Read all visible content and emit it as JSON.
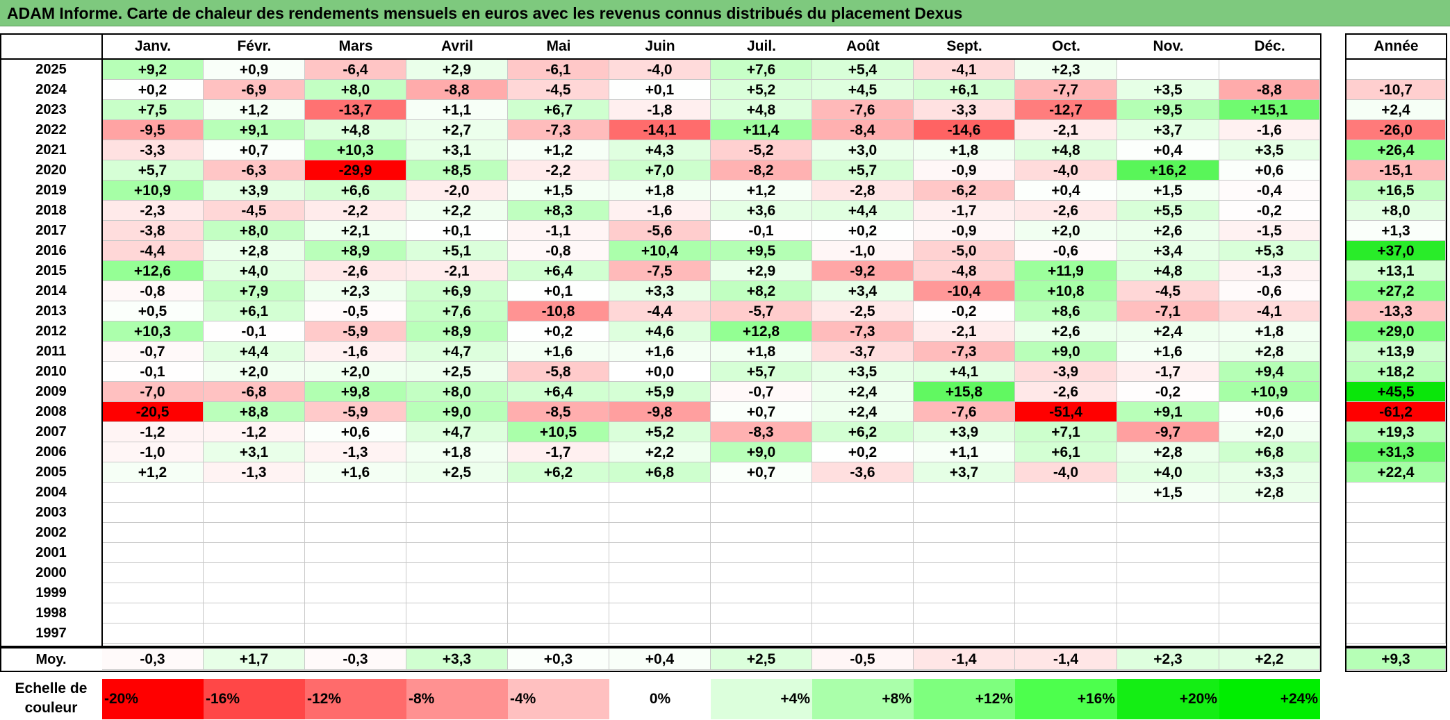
{
  "title": "ADAM Informe. Carte de chaleur des rendements mensuels en euros avec les revenus connus distribués du placement Dexus",
  "months": [
    "Janv.",
    "Févr.",
    "Mars",
    "Avril",
    "Mai",
    "Juin",
    "Juil.",
    "Août",
    "Sept.",
    "Oct.",
    "Nov.",
    "Déc."
  ],
  "year_header": "Année",
  "avg_label": "Moy.",
  "legend_title": "Echelle de couleur",
  "legend": [
    "-20%",
    "-16%",
    "-12%",
    "-8%",
    "-4%",
    "0%",
    "+4%",
    "+8%",
    "+12%",
    "+16%",
    "+20%",
    "+24%"
  ],
  "legend_colors": [
    "#ff0000",
    "#ff4747",
    "#ff6b6b",
    "#ff9191",
    "#ffc0c0",
    "#ffffff",
    "#dcffdc",
    "#aaffaa",
    "#7eff7e",
    "#4dff4d",
    "#14ee14",
    "#00ee00"
  ],
  "chart_data": {
    "type": "heatmap",
    "title": "ADAM Informe. Carte de chaleur des rendements mensuels en euros avec les revenus connus distribués du placement Dexus",
    "columns": [
      "Janv.",
      "Févr.",
      "Mars",
      "Avril",
      "Mai",
      "Juin",
      "Juil.",
      "Août",
      "Sept.",
      "Oct.",
      "Nov.",
      "Déc.",
      "Année"
    ],
    "rows": [
      {
        "year": "2025",
        "values": [
          "+9,2",
          "+0,9",
          "-6,4",
          "+2,9",
          "-6,1",
          "-4,0",
          "+7,6",
          "+5,4",
          "-4,1",
          "+2,3",
          "",
          ""
        ],
        "annual": ""
      },
      {
        "year": "2024",
        "values": [
          "+0,2",
          "-6,9",
          "+8,0",
          "-8,8",
          "-4,5",
          "+0,1",
          "+5,2",
          "+4,5",
          "+6,1",
          "-7,7",
          "+3,5",
          "-8,8"
        ],
        "annual": "-10,7"
      },
      {
        "year": "2023",
        "values": [
          "+7,5",
          "+1,2",
          "-13,7",
          "+1,1",
          "+6,7",
          "-1,8",
          "+4,8",
          "-7,6",
          "-3,3",
          "-12,7",
          "+9,5",
          "+15,1"
        ],
        "annual": "+2,4"
      },
      {
        "year": "2022",
        "values": [
          "-9,5",
          "+9,1",
          "+4,8",
          "+2,7",
          "-7,3",
          "-14,1",
          "+11,4",
          "-8,4",
          "-14,6",
          "-2,1",
          "+3,7",
          "-1,6"
        ],
        "annual": "-26,0"
      },
      {
        "year": "2021",
        "values": [
          "-3,3",
          "+0,7",
          "+10,3",
          "+3,1",
          "+1,2",
          "+4,3",
          "-5,2",
          "+3,0",
          "+1,8",
          "+4,8",
          "+0,4",
          "+3,5"
        ],
        "annual": "+26,4"
      },
      {
        "year": "2020",
        "values": [
          "+5,7",
          "-6,3",
          "-29,9",
          "+8,5",
          "-2,2",
          "+7,0",
          "-8,2",
          "+5,7",
          "-0,9",
          "-4,0",
          "+16,2",
          "+0,6"
        ],
        "annual": "-15,1"
      },
      {
        "year": "2019",
        "values": [
          "+10,9",
          "+3,9",
          "+6,6",
          "-2,0",
          "+1,5",
          "+1,8",
          "+1,2",
          "-2,8",
          "-6,2",
          "+0,4",
          "+1,5",
          "-0,4"
        ],
        "annual": "+16,5"
      },
      {
        "year": "2018",
        "values": [
          "-2,3",
          "-4,5",
          "-2,2",
          "+2,2",
          "+8,3",
          "-1,6",
          "+3,6",
          "+4,4",
          "-1,7",
          "-2,6",
          "+5,5",
          "-0,2"
        ],
        "annual": "+8,0"
      },
      {
        "year": "2017",
        "values": [
          "-3,8",
          "+8,0",
          "+2,1",
          "+0,1",
          "-1,1",
          "-5,6",
          "-0,1",
          "+0,2",
          "-0,9",
          "+2,0",
          "+2,6",
          "-1,5"
        ],
        "annual": "+1,3"
      },
      {
        "year": "2016",
        "values": [
          "-4,4",
          "+2,8",
          "+8,9",
          "+5,1",
          "-0,8",
          "+10,4",
          "+9,5",
          "-1,0",
          "-5,0",
          "-0,6",
          "+3,4",
          "+5,3"
        ],
        "annual": "+37,0"
      },
      {
        "year": "2015",
        "values": [
          "+12,6",
          "+4,0",
          "-2,6",
          "-2,1",
          "+6,4",
          "-7,5",
          "+2,9",
          "-9,2",
          "-4,8",
          "+11,9",
          "+4,8",
          "-1,3"
        ],
        "annual": "+13,1"
      },
      {
        "year": "2014",
        "values": [
          "-0,8",
          "+7,9",
          "+2,3",
          "+6,9",
          "+0,1",
          "+3,3",
          "+8,2",
          "+3,4",
          "-10,4",
          "+10,8",
          "-4,5",
          "-0,6"
        ],
        "annual": "+27,2"
      },
      {
        "year": "2013",
        "values": [
          "+0,5",
          "+6,1",
          "-0,5",
          "+7,6",
          "-10,8",
          "-4,4",
          "-5,7",
          "-2,5",
          "-0,2",
          "+8,6",
          "-7,1",
          "-4,1"
        ],
        "annual": "-13,3"
      },
      {
        "year": "2012",
        "values": [
          "+10,3",
          "-0,1",
          "-5,9",
          "+8,9",
          "+0,2",
          "+4,6",
          "+12,8",
          "-7,3",
          "-2,1",
          "+2,6",
          "+2,4",
          "+1,8"
        ],
        "annual": "+29,0"
      },
      {
        "year": "2011",
        "values": [
          "-0,7",
          "+4,4",
          "-1,6",
          "+4,7",
          "+1,6",
          "+1,6",
          "+1,8",
          "-3,7",
          "-7,3",
          "+9,0",
          "+1,6",
          "+2,8"
        ],
        "annual": "+13,9"
      },
      {
        "year": "2010",
        "values": [
          "-0,1",
          "+2,0",
          "+2,0",
          "+2,5",
          "-5,8",
          "+0,0",
          "+5,7",
          "+3,5",
          "+4,1",
          "-3,9",
          "-1,7",
          "+9,4"
        ],
        "annual": "+18,2"
      },
      {
        "year": "2009",
        "values": [
          "-7,0",
          "-6,8",
          "+9,8",
          "+8,0",
          "+6,4",
          "+5,9",
          "-0,7",
          "+2,4",
          "+15,8",
          "-2,6",
          "-0,2",
          "+10,9"
        ],
        "annual": "+45,5"
      },
      {
        "year": "2008",
        "values": [
          "-20,5",
          "+8,8",
          "-5,9",
          "+9,0",
          "-8,5",
          "-9,8",
          "+0,7",
          "+2,4",
          "-7,6",
          "-51,4",
          "+9,1",
          "+0,6"
        ],
        "annual": "-61,2"
      },
      {
        "year": "2007",
        "values": [
          "-1,2",
          "-1,2",
          "+0,6",
          "+4,7",
          "+10,5",
          "+5,2",
          "-8,3",
          "+6,2",
          "+3,9",
          "+7,1",
          "-9,7",
          "+2,0"
        ],
        "annual": "+19,3"
      },
      {
        "year": "2006",
        "values": [
          "-1,0",
          "+3,1",
          "-1,3",
          "+1,8",
          "-1,7",
          "+2,2",
          "+9,0",
          "+0,2",
          "+1,1",
          "+6,1",
          "+2,8",
          "+6,8"
        ],
        "annual": "+31,3"
      },
      {
        "year": "2005",
        "values": [
          "+1,2",
          "-1,3",
          "+1,6",
          "+2,5",
          "+6,2",
          "+6,8",
          "+0,7",
          "-3,6",
          "+3,7",
          "-4,0",
          "+4,0",
          "+3,3"
        ],
        "annual": "+22,4"
      },
      {
        "year": "2004",
        "values": [
          "",
          "",
          "",
          "",
          "",
          "",
          "",
          "",
          "",
          "",
          "+1,5",
          "+2,8"
        ],
        "annual": ""
      },
      {
        "year": "2003",
        "values": [
          "",
          "",
          "",
          "",
          "",
          "",
          "",
          "",
          "",
          "",
          "",
          ""
        ],
        "annual": ""
      },
      {
        "year": "2002",
        "values": [
          "",
          "",
          "",
          "",
          "",
          "",
          "",
          "",
          "",
          "",
          "",
          ""
        ],
        "annual": ""
      },
      {
        "year": "2001",
        "values": [
          "",
          "",
          "",
          "",
          "",
          "",
          "",
          "",
          "",
          "",
          "",
          ""
        ],
        "annual": ""
      },
      {
        "year": "2000",
        "values": [
          "",
          "",
          "",
          "",
          "",
          "",
          "",
          "",
          "",
          "",
          "",
          ""
        ],
        "annual": ""
      },
      {
        "year": "1999",
        "values": [
          "",
          "",
          "",
          "",
          "",
          "",
          "",
          "",
          "",
          "",
          "",
          ""
        ],
        "annual": ""
      },
      {
        "year": "1998",
        "values": [
          "",
          "",
          "",
          "",
          "",
          "",
          "",
          "",
          "",
          "",
          "",
          ""
        ],
        "annual": ""
      },
      {
        "year": "1997",
        "values": [
          "",
          "",
          "",
          "",
          "",
          "",
          "",
          "",
          "",
          "",
          "",
          ""
        ],
        "annual": ""
      }
    ],
    "averages": [
      "-0,3",
      "+1,7",
      "-0,3",
      "+3,3",
      "+0,3",
      "+0,4",
      "+2,5",
      "-0,5",
      "-1,4",
      "-1,4",
      "+2,3",
      "+2,2"
    ],
    "average_annual": "+9,3"
  }
}
